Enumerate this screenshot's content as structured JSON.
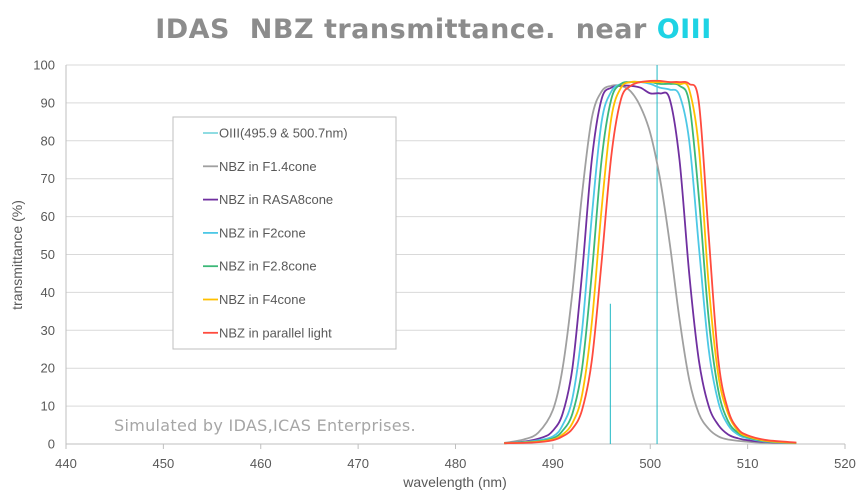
{
  "chart_data": {
    "type": "line",
    "title": {
      "prefix": "IDAS  NBZ transmittance.  near ",
      "highlight": "OIII"
    },
    "xlabel": "wavelength (nm)",
    "ylabel": "transmittance (%)",
    "xlim": [
      440,
      520
    ],
    "ylim": [
      0,
      100
    ],
    "x_ticks": [
      440,
      450,
      460,
      470,
      480,
      490,
      500,
      510,
      520
    ],
    "y_ticks": [
      0,
      10,
      20,
      30,
      40,
      50,
      60,
      70,
      80,
      90,
      100
    ],
    "grid": "horizontal",
    "legend_position": "upper-left",
    "annotation": "Simulated by IDAS,ICAS Enterprises.",
    "emission_lines": {
      "name": "OIII(495.9 & 500.7nm)",
      "color": "#1fb8c4",
      "lines": [
        {
          "x": 495.9,
          "y": 37
        },
        {
          "x": 500.7,
          "y": 100
        }
      ]
    },
    "series": [
      {
        "name": "NBZ  in F1.4cone",
        "color": "#a0a0a0",
        "x": [
          485,
          487,
          488.5,
          490,
          491,
          492,
          493,
          494,
          495,
          496,
          497,
          498,
          499,
          500,
          501,
          502,
          503,
          504,
          505,
          506,
          507,
          508,
          510,
          512,
          515
        ],
        "y": [
          0.3,
          1.2,
          3,
          9,
          20,
          40,
          66,
          86,
          93,
          94.5,
          94.5,
          93,
          89,
          82,
          70,
          53,
          33,
          17,
          8,
          4,
          2,
          1.2,
          0.6,
          0.3,
          0.2
        ]
      },
      {
        "name": "NBZ  in RASA8cone",
        "color": "#7030a0",
        "x": [
          485,
          487,
          489,
          490,
          491,
          492,
          493,
          494,
          495,
          496,
          497,
          498,
          499,
          500,
          501,
          502,
          503,
          504,
          505,
          506,
          507,
          508,
          509,
          510,
          512,
          515
        ],
        "y": [
          0.2,
          0.6,
          1.8,
          3.5,
          8,
          20,
          45,
          75,
          91,
          94,
          94.5,
          94.5,
          94,
          92.5,
          92.5,
          91,
          75,
          45,
          22,
          10,
          5,
          2.5,
          1.5,
          1,
          0.5,
          0.3
        ]
      },
      {
        "name": "NBZ  in F2cone",
        "color": "#4dc8e6",
        "x": [
          485,
          488,
          490,
          491,
          492,
          493,
          494,
          495,
          496,
          497,
          498,
          499,
          500,
          501,
          502,
          503,
          504,
          505,
          506,
          507,
          508,
          509,
          510,
          512,
          515
        ],
        "y": [
          0.2,
          0.8,
          2,
          5,
          12,
          30,
          60,
          85,
          93,
          95,
          95.5,
          95.5,
          95,
          94,
          93.5,
          92,
          80,
          52,
          25,
          11,
          5,
          2.5,
          1.5,
          0.6,
          0.3
        ]
      },
      {
        "name": "NBZ  in F2.8cone",
        "color": "#3cb878",
        "x": [
          485,
          488,
          490,
          491,
          492,
          493,
          494,
          495,
          496,
          497,
          498,
          499,
          500,
          501,
          502,
          503,
          504,
          505,
          506,
          507,
          508,
          509,
          510,
          512,
          515
        ],
        "y": [
          0.2,
          0.6,
          1.5,
          3.5,
          8,
          20,
          45,
          75,
          91,
          95,
          95.5,
          95.5,
          95.5,
          95,
          95,
          94.5,
          90,
          65,
          33,
          14,
          6,
          3,
          1.8,
          0.7,
          0.3
        ]
      },
      {
        "name": "NBZ  in F4cone",
        "color": "#ffc000",
        "x": [
          485,
          488,
          490,
          491,
          492,
          493,
          494,
          495,
          496,
          497,
          498,
          499,
          500,
          501,
          502,
          503,
          504,
          505,
          506,
          507,
          508,
          509,
          510,
          512,
          515
        ],
        "y": [
          0.2,
          0.5,
          1.2,
          2.5,
          5.5,
          13,
          32,
          62,
          86,
          94,
          95.5,
          95.5,
          95.5,
          95.5,
          95.5,
          95,
          93.5,
          78,
          42,
          18,
          8,
          3.5,
          2,
          0.8,
          0.3
        ]
      },
      {
        "name": "NBZ  in parallel light",
        "color": "#ff4b3e",
        "x": [
          485,
          488,
          490,
          491,
          492,
          493,
          494,
          495,
          496,
          497,
          498,
          499,
          500,
          501,
          502,
          503,
          504,
          505,
          506,
          507,
          508,
          509,
          510,
          512,
          515
        ],
        "y": [
          0.2,
          0.4,
          1,
          2,
          4,
          9,
          22,
          48,
          76,
          91,
          94.5,
          95.5,
          95.8,
          95.8,
          95.5,
          95.5,
          95,
          90,
          55,
          22,
          9,
          4,
          2.3,
          1,
          0.4
        ]
      }
    ]
  }
}
